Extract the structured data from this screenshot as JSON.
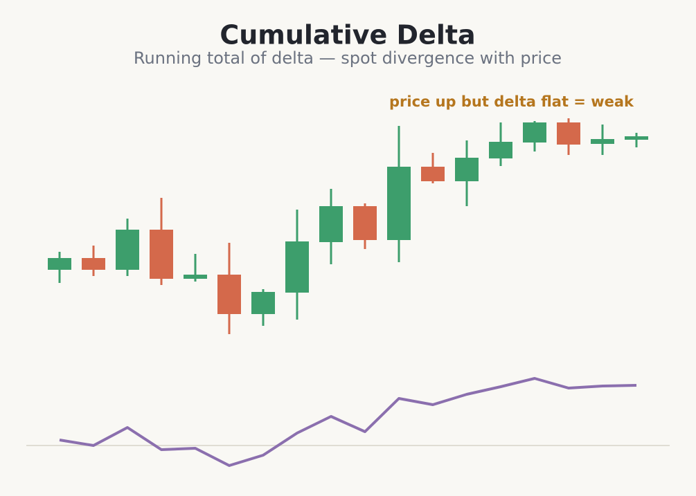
{
  "chart_data": {
    "type": "candlestick",
    "title": "Cumulative Delta",
    "subtitle": "Running total of delta — spot divergence with price",
    "annotation": "price up but delta flat = weak",
    "up_color": "#3d9e6c",
    "down_color": "#d4694b",
    "open": [
      52.5,
      56.75,
      52.5,
      67,
      49.25,
      50.75,
      36.5,
      44.25,
      62.5,
      75.5,
      63.25,
      89.75,
      84.5,
      92.75,
      98.5,
      105.75,
      98,
      99.5
    ],
    "high": [
      59,
      61.25,
      71,
      78.5,
      58.25,
      62.25,
      45.5,
      74.25,
      81.75,
      76.5,
      104.5,
      94.75,
      99.25,
      105.75,
      106.25,
      107.25,
      105,
      102
    ],
    "low": [
      47.75,
      50.25,
      50.25,
      47,
      48.25,
      29.25,
      32.25,
      34.5,
      54.5,
      60,
      55.25,
      83.75,
      75.5,
      90,
      95.25,
      94,
      94,
      96.75
    ],
    "close": [
      56.75,
      52.5,
      67,
      49.25,
      50.75,
      36.5,
      44.5,
      62.75,
      75.5,
      63.25,
      89.75,
      84.5,
      93,
      98.75,
      105.75,
      97.75,
      99.75,
      100.75
    ],
    "ylim": [
      25,
      110
    ],
    "delta": {
      "color": "#8b6fae",
      "values": [
        8,
        0,
        26,
        -6,
        -4,
        -29,
        -14,
        18,
        42,
        20,
        68,
        59,
        74,
        85,
        97,
        83,
        86,
        87
      ]
    },
    "y2lim": [
      -56,
      124
    ]
  }
}
